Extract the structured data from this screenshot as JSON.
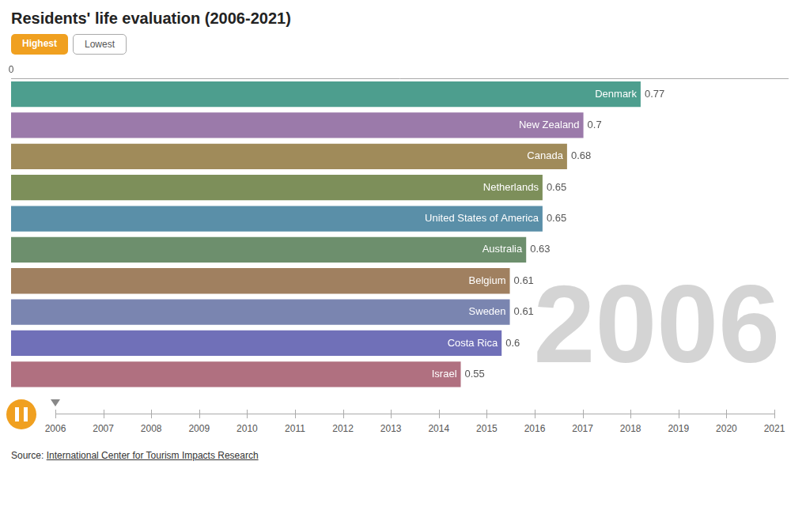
{
  "chart_data": {
    "type": "bar",
    "orientation": "horizontal",
    "title": "Residents' life evaluation (2006-2021)",
    "categories": [
      "Denmark",
      "New Zealand",
      "Canada",
      "Netherlands",
      "United States of America",
      "Australia",
      "Belgium",
      "Sweden",
      "Costa Rica",
      "Israel"
    ],
    "values": [
      0.77,
      0.7,
      0.68,
      0.65,
      0.65,
      0.63,
      0.61,
      0.61,
      0.6,
      0.55
    ],
    "colors": [
      "#4d9e8e",
      "#9b7aaa",
      "#a08b5a",
      "#7d8f5a",
      "#5a8fa8",
      "#6d8f6d",
      "#a08060",
      "#7a85b0",
      "#7070b8",
      "#b07080"
    ],
    "xlim": [
      0,
      0.95
    ],
    "xticks": [
      0
    ],
    "grid": false,
    "data_labels": true,
    "tick_labels": "x",
    "annotations": [
      "2006",
      "Highest",
      "Lowest",
      "2006",
      "2007",
      "2008",
      "2009",
      "2010",
      "2011",
      "2012",
      "2013",
      "2014",
      "2015",
      "2016",
      "2017",
      "2018",
      "2019",
      "2020",
      "2021",
      "Source: International Center for Tourism Impacts Research"
    ]
  }
}
